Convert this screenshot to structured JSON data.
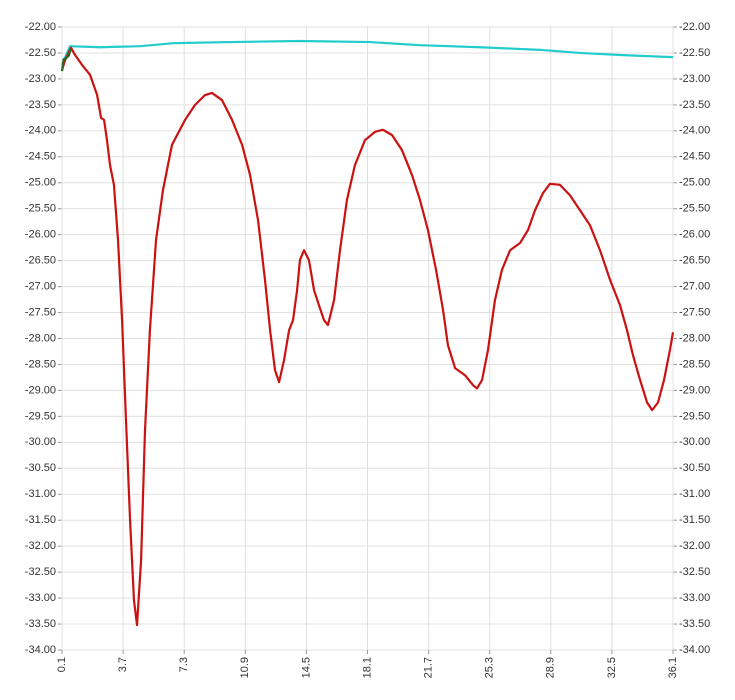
{
  "chart_data": {
    "type": "line",
    "xlim": [
      0.1,
      36.1
    ],
    "xticks": [
      0.1,
      3.7,
      7.3,
      10.9,
      14.5,
      18.1,
      21.7,
      25.3,
      28.9,
      32.5,
      36.1
    ],
    "ylim": [
      -34,
      -22
    ],
    "yticks": [
      {
        "value": -22,
        "label": "-22.00"
      },
      {
        "value": -22.5,
        "label": "-22.50"
      },
      {
        "value": -23,
        "label": "-23.00"
      },
      {
        "value": -23.5,
        "label": "-23.50"
      },
      {
        "value": -24,
        "label": "-24.00"
      },
      {
        "value": -24.5,
        "label": "-24.50"
      },
      {
        "value": -25,
        "label": "-25.00"
      },
      {
        "value": -25.5,
        "label": "-25.50"
      },
      {
        "value": -26,
        "label": "-26.00"
      },
      {
        "value": -26.5,
        "label": "-26.50"
      },
      {
        "value": -27,
        "label": "-27.00"
      },
      {
        "value": -27.5,
        "label": "-27.50"
      },
      {
        "value": -28,
        "label": "-28.00"
      },
      {
        "value": -28.5,
        "label": "-28.50"
      },
      {
        "value": -29,
        "label": "-29.00"
      },
      {
        "value": -29.5,
        "label": "-29.50"
      },
      {
        "value": -30,
        "label": "-30.00"
      },
      {
        "value": -30.5,
        "label": "-30.50"
      },
      {
        "value": -31,
        "label": "-31.00"
      },
      {
        "value": -31.5,
        "label": "-31.50"
      },
      {
        "value": -32,
        "label": "-32.00"
      },
      {
        "value": -32.5,
        "label": "-32.50"
      },
      {
        "value": -33,
        "label": "-33.00"
      },
      {
        "value": -33.5,
        "label": "-33.50"
      },
      {
        "value": -34,
        "label": "-34.00"
      }
    ],
    "grid": true,
    "series": [
      {
        "color": "#22cccc",
        "x": [
          0.1,
          0.34,
          0.57,
          2.34,
          4.7,
          6.76,
          10.0,
          14.12,
          18.25,
          21.19,
          24.73,
          28.26,
          30.62,
          32.98,
          36.1
        ],
        "values": [
          -22.73,
          -22.54,
          -22.37,
          -22.39,
          -22.37,
          -22.31,
          -22.29,
          -22.27,
          -22.29,
          -22.35,
          -22.39,
          -22.44,
          -22.5,
          -22.54,
          -22.58
        ]
      },
      {
        "color": "#cc1111",
        "x": [
          0.1,
          0.28,
          0.63,
          0.87,
          1.28,
          1.75,
          2.17,
          2.4,
          2.58,
          2.75,
          2.93,
          3.16,
          3.4,
          3.64,
          3.87,
          4.11,
          4.34,
          4.52,
          4.76,
          4.99,
          5.28,
          5.64,
          6.05,
          6.58,
          7.35,
          7.94,
          8.53,
          8.94,
          9.53,
          10.12,
          10.71,
          11.18,
          11.65,
          12.06,
          12.36,
          12.65,
          12.89,
          13.18,
          13.48,
          13.71,
          13.95,
          14.12,
          14.36,
          14.65,
          14.95,
          15.24,
          15.54,
          15.77,
          16.13,
          16.48,
          16.89,
          17.36,
          17.95,
          18.54,
          19.01,
          19.54,
          20.13,
          20.72,
          21.19,
          21.66,
          22.14,
          22.55,
          22.84,
          23.26,
          23.85,
          24.32,
          24.55,
          24.85,
          25.2,
          25.61,
          26.02,
          26.5,
          27.09,
          27.56,
          27.97,
          28.44,
          28.85,
          29.44,
          30.03,
          30.62,
          31.21,
          31.8,
          32.39,
          32.98,
          33.39,
          33.74,
          34.16,
          34.57,
          34.87,
          35.22,
          35.57,
          35.92,
          36.1
        ],
        "values": [
          -22.83,
          -22.64,
          -22.4,
          -22.54,
          -22.73,
          -22.92,
          -23.31,
          -23.75,
          -23.79,
          -24.18,
          -24.66,
          -25.04,
          -26.1,
          -27.65,
          -29.57,
          -31.5,
          -33.04,
          -33.52,
          -32.27,
          -29.77,
          -27.84,
          -26.1,
          -25.14,
          -24.27,
          -23.79,
          -23.5,
          -23.31,
          -23.27,
          -23.41,
          -23.79,
          -24.27,
          -24.85,
          -25.72,
          -26.87,
          -27.84,
          -28.61,
          -28.84,
          -28.42,
          -27.84,
          -27.65,
          -27.07,
          -26.49,
          -26.3,
          -26.49,
          -27.07,
          -27.36,
          -27.65,
          -27.74,
          -27.26,
          -26.3,
          -25.33,
          -24.66,
          -24.18,
          -24.02,
          -23.98,
          -24.08,
          -24.37,
          -24.85,
          -25.33,
          -25.91,
          -26.68,
          -27.45,
          -28.13,
          -28.57,
          -28.71,
          -28.9,
          -28.96,
          -28.8,
          -28.22,
          -27.26,
          -26.68,
          -26.3,
          -26.16,
          -25.91,
          -25.53,
          -25.2,
          -25.02,
          -25.04,
          -25.24,
          -25.53,
          -25.82,
          -26.3,
          -26.87,
          -27.36,
          -27.84,
          -28.32,
          -28.8,
          -29.23,
          -29.38,
          -29.23,
          -28.8,
          -28.22,
          -27.88
        ]
      },
      {
        "color": "#2a6a2a",
        "x": [
          0.1,
          0.2,
          0.35,
          0.5,
          0.63
        ],
        "values": [
          -22.85,
          -22.62,
          -22.6,
          -22.55,
          -22.42
        ]
      }
    ]
  }
}
